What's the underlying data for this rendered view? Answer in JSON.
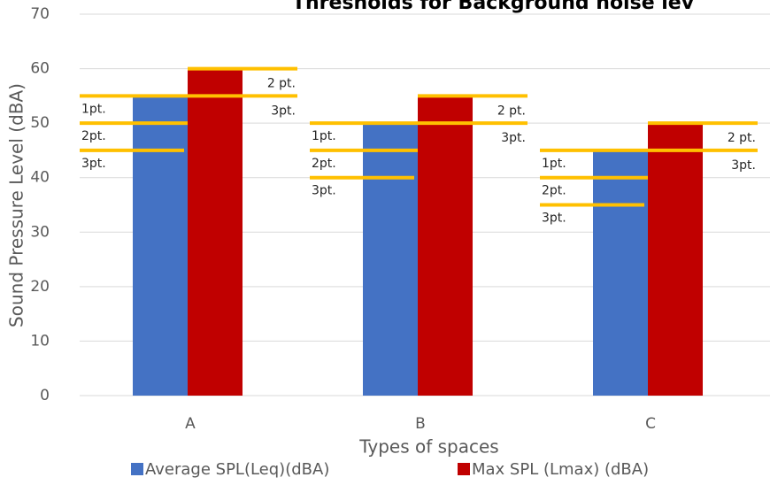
{
  "chart_data": {
    "type": "bar",
    "title": "Thresholds for Background noise lev",
    "x_label": "Types of spaces",
    "y_label": "Sound Pressure Level (dBA)",
    "categories": [
      "A",
      "B",
      "C"
    ],
    "series": [
      {
        "name": "Average SPL(Leq)(dBA)",
        "color": "#4472c4",
        "values": [
          55,
          50,
          45
        ]
      },
      {
        "name": "Max SPL (Lmax) (dBA)",
        "color": "#c00000",
        "values": [
          60,
          55,
          50
        ]
      }
    ],
    "ylim": [
      0,
      70
    ],
    "yticks": [
      0,
      10,
      20,
      30,
      40,
      50,
      60,
      70
    ],
    "grid": true,
    "legend": "bottom",
    "threshold_color": "#ffc000",
    "thresholds": [
      {
        "avg": [
          55,
          50,
          45
        ],
        "max": [
          60,
          55
        ]
      },
      {
        "avg": [
          50,
          45,
          40
        ],
        "max": [
          55,
          50
        ]
      },
      {
        "avg": [
          45,
          40,
          35
        ],
        "max": [
          50,
          45
        ]
      }
    ],
    "threshold_labels": {
      "avg": [
        "1pt.",
        "2pt.",
        "3pt."
      ],
      "max": [
        "2 pt.",
        "3pt."
      ]
    }
  }
}
